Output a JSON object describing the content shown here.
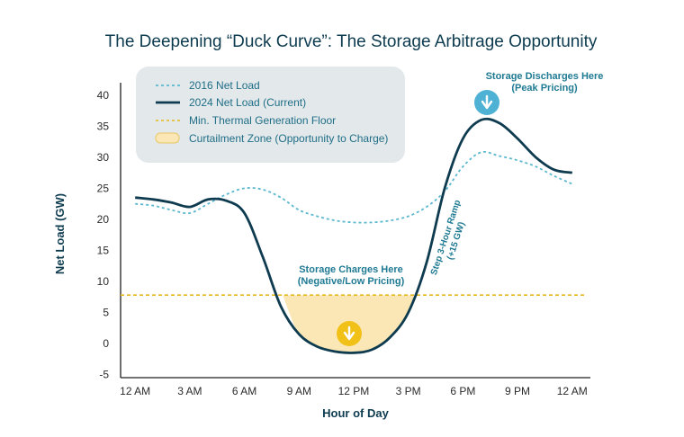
{
  "chart_data": {
    "type": "line",
    "title": "The Deepening “Duck Curve”: The Storage Arbitrage Opportunity",
    "xlabel": "Hour of Day",
    "ylabel": "Net Load (GW)",
    "x_ticks": [
      {
        "hour": 0,
        "label": "12 AM"
      },
      {
        "hour": 3,
        "label": "3 AM"
      },
      {
        "hour": 6,
        "label": "6 AM"
      },
      {
        "hour": 9,
        "label": "9 AM"
      },
      {
        "hour": 12,
        "label": "12 PM"
      },
      {
        "hour": 15,
        "label": "3 PM"
      },
      {
        "hour": 18,
        "label": "6 PM"
      },
      {
        "hour": 21,
        "label": "9 PM"
      },
      {
        "hour": 24,
        "label": "12 AM"
      }
    ],
    "y_ticks": [
      -5,
      0,
      5,
      10,
      15,
      20,
      25,
      30,
      35,
      40
    ],
    "xlim": [
      -0.8,
      25
    ],
    "ylim": [
      -5.5,
      42
    ],
    "grid": false,
    "legend_position": "top-left",
    "legend": [
      "2016 Net Load",
      "2024 Net Load (Current)",
      "Min. Thermal Generation Floor",
      "Curtailment Zone (Opportunity to Charge)"
    ],
    "series": [
      {
        "name": "2016 Net Load",
        "style": "dotted",
        "color": "#5bb8cf",
        "x": [
          0,
          1,
          2,
          3,
          4,
          5,
          6,
          7,
          8,
          9,
          10,
          11,
          12,
          13,
          14,
          15,
          16,
          17,
          18,
          19,
          20,
          21,
          22,
          23,
          24
        ],
        "y": [
          22.5,
          22.2,
          21.5,
          21.0,
          22.5,
          24.0,
          25.0,
          24.8,
          23.5,
          21.5,
          20.5,
          19.8,
          19.5,
          19.5,
          19.8,
          20.5,
          22.0,
          24.5,
          28.5,
          30.8,
          30.2,
          29.5,
          28.5,
          27.0,
          25.7
        ]
      },
      {
        "name": "2024 Net Load (Current)",
        "style": "solid",
        "color": "#0e3b4f",
        "x": [
          0,
          1,
          2,
          3,
          4,
          5,
          6,
          7,
          8,
          9,
          10,
          11,
          12,
          13,
          14,
          15,
          16,
          17,
          18,
          19,
          20,
          21,
          22,
          23,
          24
        ],
        "y": [
          23.5,
          23.2,
          22.7,
          22.0,
          23.2,
          23.0,
          21.0,
          14.0,
          6.0,
          1.5,
          -0.5,
          -1.3,
          -1.5,
          -1.0,
          1.0,
          5.0,
          13.0,
          25.0,
          33.0,
          36.0,
          35.5,
          33.0,
          30.0,
          28.0,
          27.5
        ]
      }
    ],
    "floor": {
      "name": "Min. Thermal Generation Floor",
      "value": 7.8,
      "color": "#e8b820"
    },
    "curtailment_zone": {
      "name": "Curtailment Zone (Opportunity to Charge)",
      "color": "#fae7b5",
      "from_hour": 8.1,
      "to_hour": 15.3
    },
    "annotations": {
      "discharge": "Storage Discharges Here\n(Peak Pricing)",
      "charge": "Storage Charges Here\n(Negative/Low Pricing)",
      "ramp": "Step 3-Hour Ramp\n(+15 GW)"
    },
    "colors": {
      "title": "#0d3b4f",
      "annotation": "#1f7a93",
      "legend_box": "#e3e8eb",
      "discharge_badge": "#4fb2d4",
      "charge_badge": "#f2c118"
    },
    "icons": {
      "discharge": "arrow-down-icon",
      "charge": "arrow-down-icon"
    }
  }
}
